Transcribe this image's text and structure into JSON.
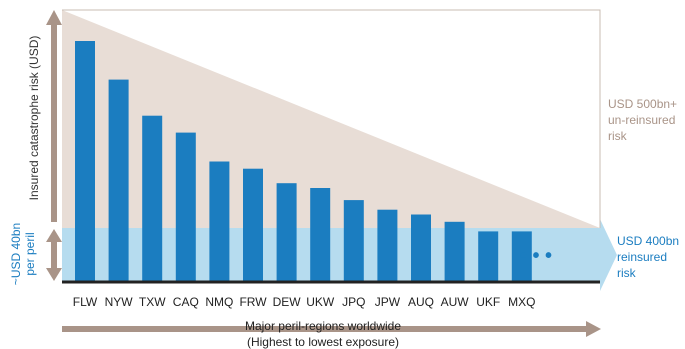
{
  "chart_data": {
    "type": "bar",
    "ylabel": "Insured catastrophe risk (USD)",
    "xlabel_line1": "Major peril-regions worldwide",
    "xlabel_line2": "(Highest to lowest exposure)",
    "categories": [
      "FLW",
      "NYW",
      "TXW",
      "CAQ",
      "NMQ",
      "FRW",
      "DEW",
      "UKW",
      "JPQ",
      "JPW",
      "AUQ",
      "AUW",
      "UKF",
      "MXQ"
    ],
    "values": [
      100,
      84,
      69,
      62,
      50,
      47,
      41,
      39,
      34,
      30,
      28,
      25,
      21,
      21
    ],
    "value_note": "relative exposure estimated from bar heights; no numeric axis printed",
    "ellipsis": "• • •",
    "annotations": {
      "unreinsured_line1": "USD 500bn+",
      "unreinsured_line2": "un-reinsured",
      "unreinsured_line3": "risk",
      "reinsured_line1": "USD 400bn",
      "reinsured_line2": "reinsured",
      "reinsured_line3": "risk",
      "per_peril_line1": "~USD 40bn",
      "per_peril_line2": "per peril"
    },
    "colors": {
      "bar": "#1b7dc0",
      "unreinsured_area": "#e8ddd6",
      "reinsured_band": "#b6dcef",
      "arrow": "#a99488",
      "blue_text": "#1b7dc0",
      "grey_text": "#a99488",
      "baseline": "#222222"
    }
  }
}
